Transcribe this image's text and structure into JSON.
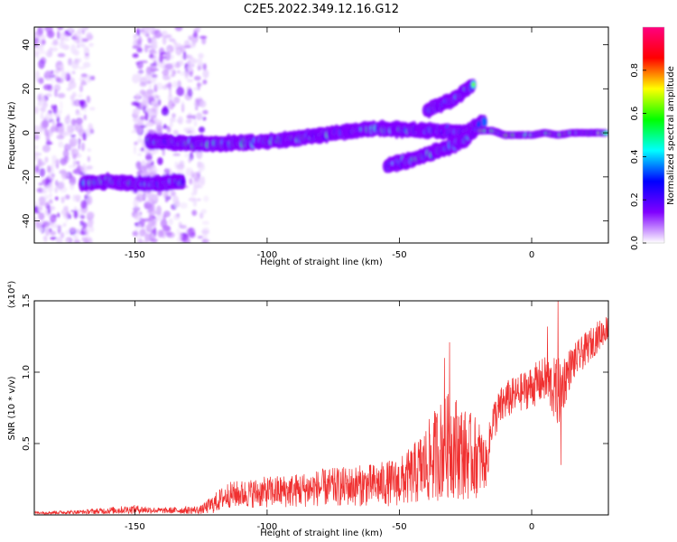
{
  "figure": {
    "title": "C2E5.2022.349.12.16.G12"
  },
  "chart_data": [
    {
      "type": "heatmap",
      "xlabel": "Height of straight line (km)",
      "ylabel": "Frequency (Hz)",
      "xlim": [
        -188,
        29
      ],
      "ylim": [
        -50,
        48
      ],
      "x_ticks": [
        -150,
        -100,
        -50,
        0
      ],
      "x_tick_labels": [
        "-150",
        "-100",
        "-50",
        "0"
      ],
      "y_ticks": [
        -40,
        -20,
        0,
        20,
        40
      ],
      "y_tick_labels": [
        "-40",
        "-20",
        "0",
        "20",
        "40"
      ],
      "colorbar": {
        "label": "Normalized spectral amplitude",
        "range": [
          0,
          1
        ],
        "ticks": [
          0.0,
          0.2,
          0.4,
          0.6,
          0.8
        ],
        "tick_labels": [
          "0.0",
          "0.2",
          "0.4",
          "0.6",
          "0.8"
        ],
        "colors": [
          "#ffffff",
          "#8000ff",
          "#0000ff",
          "#00ffff",
          "#00ff00",
          "#ffff00",
          "#ff0000",
          "#ff0080"
        ]
      },
      "grid": false,
      "ridges": [
        {
          "x": [
            -170,
            -160,
            -150,
            -140,
            -132
          ],
          "y": [
            -23,
            -22,
            -23,
            -23,
            -22
          ]
        },
        {
          "x": [
            -145,
            -120,
            -100,
            -80,
            -60,
            -40,
            -25,
            -18
          ],
          "y": [
            -4,
            -5,
            -4,
            -1,
            2,
            1,
            0,
            5
          ]
        },
        {
          "x": [
            -55,
            -45,
            -35,
            -25,
            -20
          ],
          "y": [
            -15,
            -12,
            -8,
            -3,
            3
          ]
        },
        {
          "x": [
            -40,
            -30,
            -22
          ],
          "y": [
            10,
            15,
            22
          ]
        },
        {
          "x": [
            -20,
            -15,
            -10,
            -5,
            0,
            5,
            10,
            15,
            20,
            28
          ],
          "y": [
            1,
            1,
            -1,
            -1,
            -1,
            0,
            -1,
            0,
            0,
            0
          ]
        }
      ]
    },
    {
      "type": "line",
      "xlabel": "Height of straight line (km)",
      "ylabel": "SNR (10 * v/v)",
      "y_scale_label": "(x10⁴)",
      "xlim": [
        -188,
        29
      ],
      "ylim": [
        0,
        15000
      ],
      "x_ticks": [
        -150,
        -100,
        -50,
        0
      ],
      "x_tick_labels": [
        "-150",
        "-100",
        "-50",
        "0"
      ],
      "y_ticks": [
        5000,
        10000,
        15000
      ],
      "y_tick_labels": [
        "0.5",
        "1.0",
        "1.5"
      ],
      "line_color": "#f03030",
      "grid": false,
      "envelope": {
        "x": [
          -188,
          -170,
          -160,
          -150,
          -140,
          -125,
          -120,
          -115,
          -100,
          -90,
          -80,
          -70,
          -60,
          -50,
          -45,
          -40,
          -35,
          -30,
          -25,
          -20,
          -17,
          -15,
          -10,
          -5,
          0,
          5,
          10,
          15,
          20,
          25,
          29
        ],
        "mean": [
          150,
          200,
          300,
          400,
          300,
          350,
          800,
          1400,
          1600,
          1700,
          1900,
          2000,
          2100,
          2300,
          2800,
          3500,
          4500,
          5000,
          4200,
          4000,
          3500,
          6500,
          8000,
          8500,
          9000,
          9500,
          8500,
          10500,
          11500,
          12500,
          13200
        ],
        "amp": [
          100,
          150,
          250,
          300,
          200,
          300,
          700,
          900,
          1100,
          1200,
          1300,
          1400,
          1500,
          1700,
          2100,
          2800,
          3500,
          3800,
          3200,
          2800,
          1500,
          1500,
          1400,
          1300,
          1500,
          1600,
          2500,
          1300,
          1200,
          1100,
          900
        ]
      },
      "spikes": [
        {
          "x": 10,
          "y": 15200
        },
        {
          "x": 11,
          "y": 3500
        },
        {
          "x": -31,
          "y": 12100
        },
        {
          "x": 6,
          "y": 13200
        },
        {
          "x": -33,
          "y": 11000
        }
      ]
    }
  ]
}
